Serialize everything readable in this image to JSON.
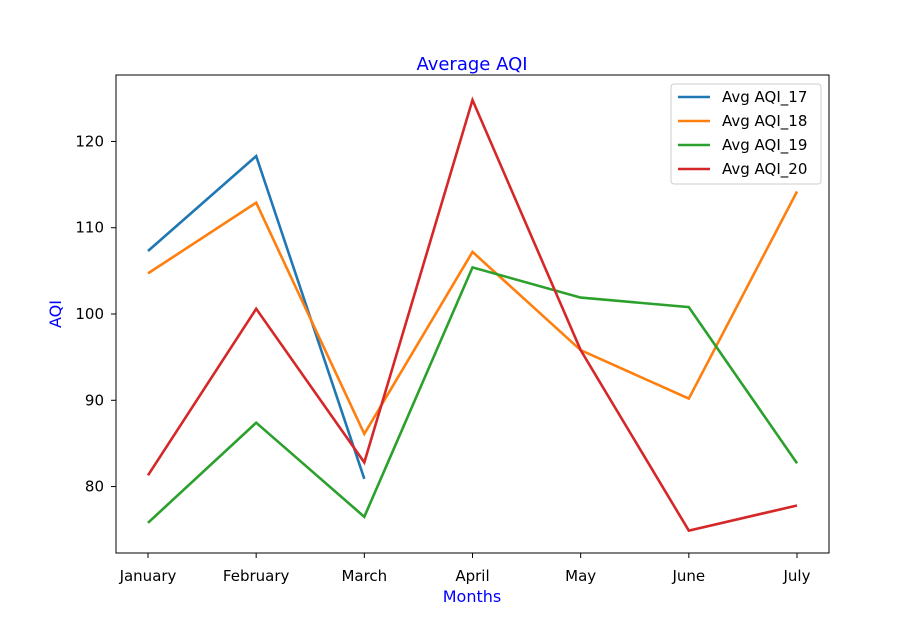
{
  "chart_data": {
    "type": "line",
    "title": "Average AQI",
    "xlabel": "Months",
    "ylabel": "AQI",
    "categories": [
      "January",
      "February",
      "March",
      "April",
      "May",
      "June",
      "July"
    ],
    "ylim": [
      72.3,
      127.7
    ],
    "yticks": [
      80,
      90,
      100,
      110,
      120
    ],
    "grid": false,
    "legend_position": "top-right",
    "series": [
      {
        "name": "Avg AQI_17",
        "color": "#1f77b4",
        "values": [
          107.3,
          118.3,
          80.9,
          null,
          null,
          null,
          null
        ]
      },
      {
        "name": "Avg AQI_18",
        "color": "#ff7f0e",
        "values": [
          104.7,
          112.9,
          86.1,
          107.2,
          95.8,
          90.2,
          114.2
        ]
      },
      {
        "name": "Avg AQI_19",
        "color": "#2ca02c",
        "values": [
          75.8,
          87.4,
          76.5,
          105.4,
          101.9,
          100.8,
          82.7
        ]
      },
      {
        "name": "Avg AQI_20",
        "color": "#d62728",
        "values": [
          81.3,
          100.6,
          82.8,
          124.8,
          95.8,
          74.9,
          77.8
        ]
      }
    ]
  }
}
